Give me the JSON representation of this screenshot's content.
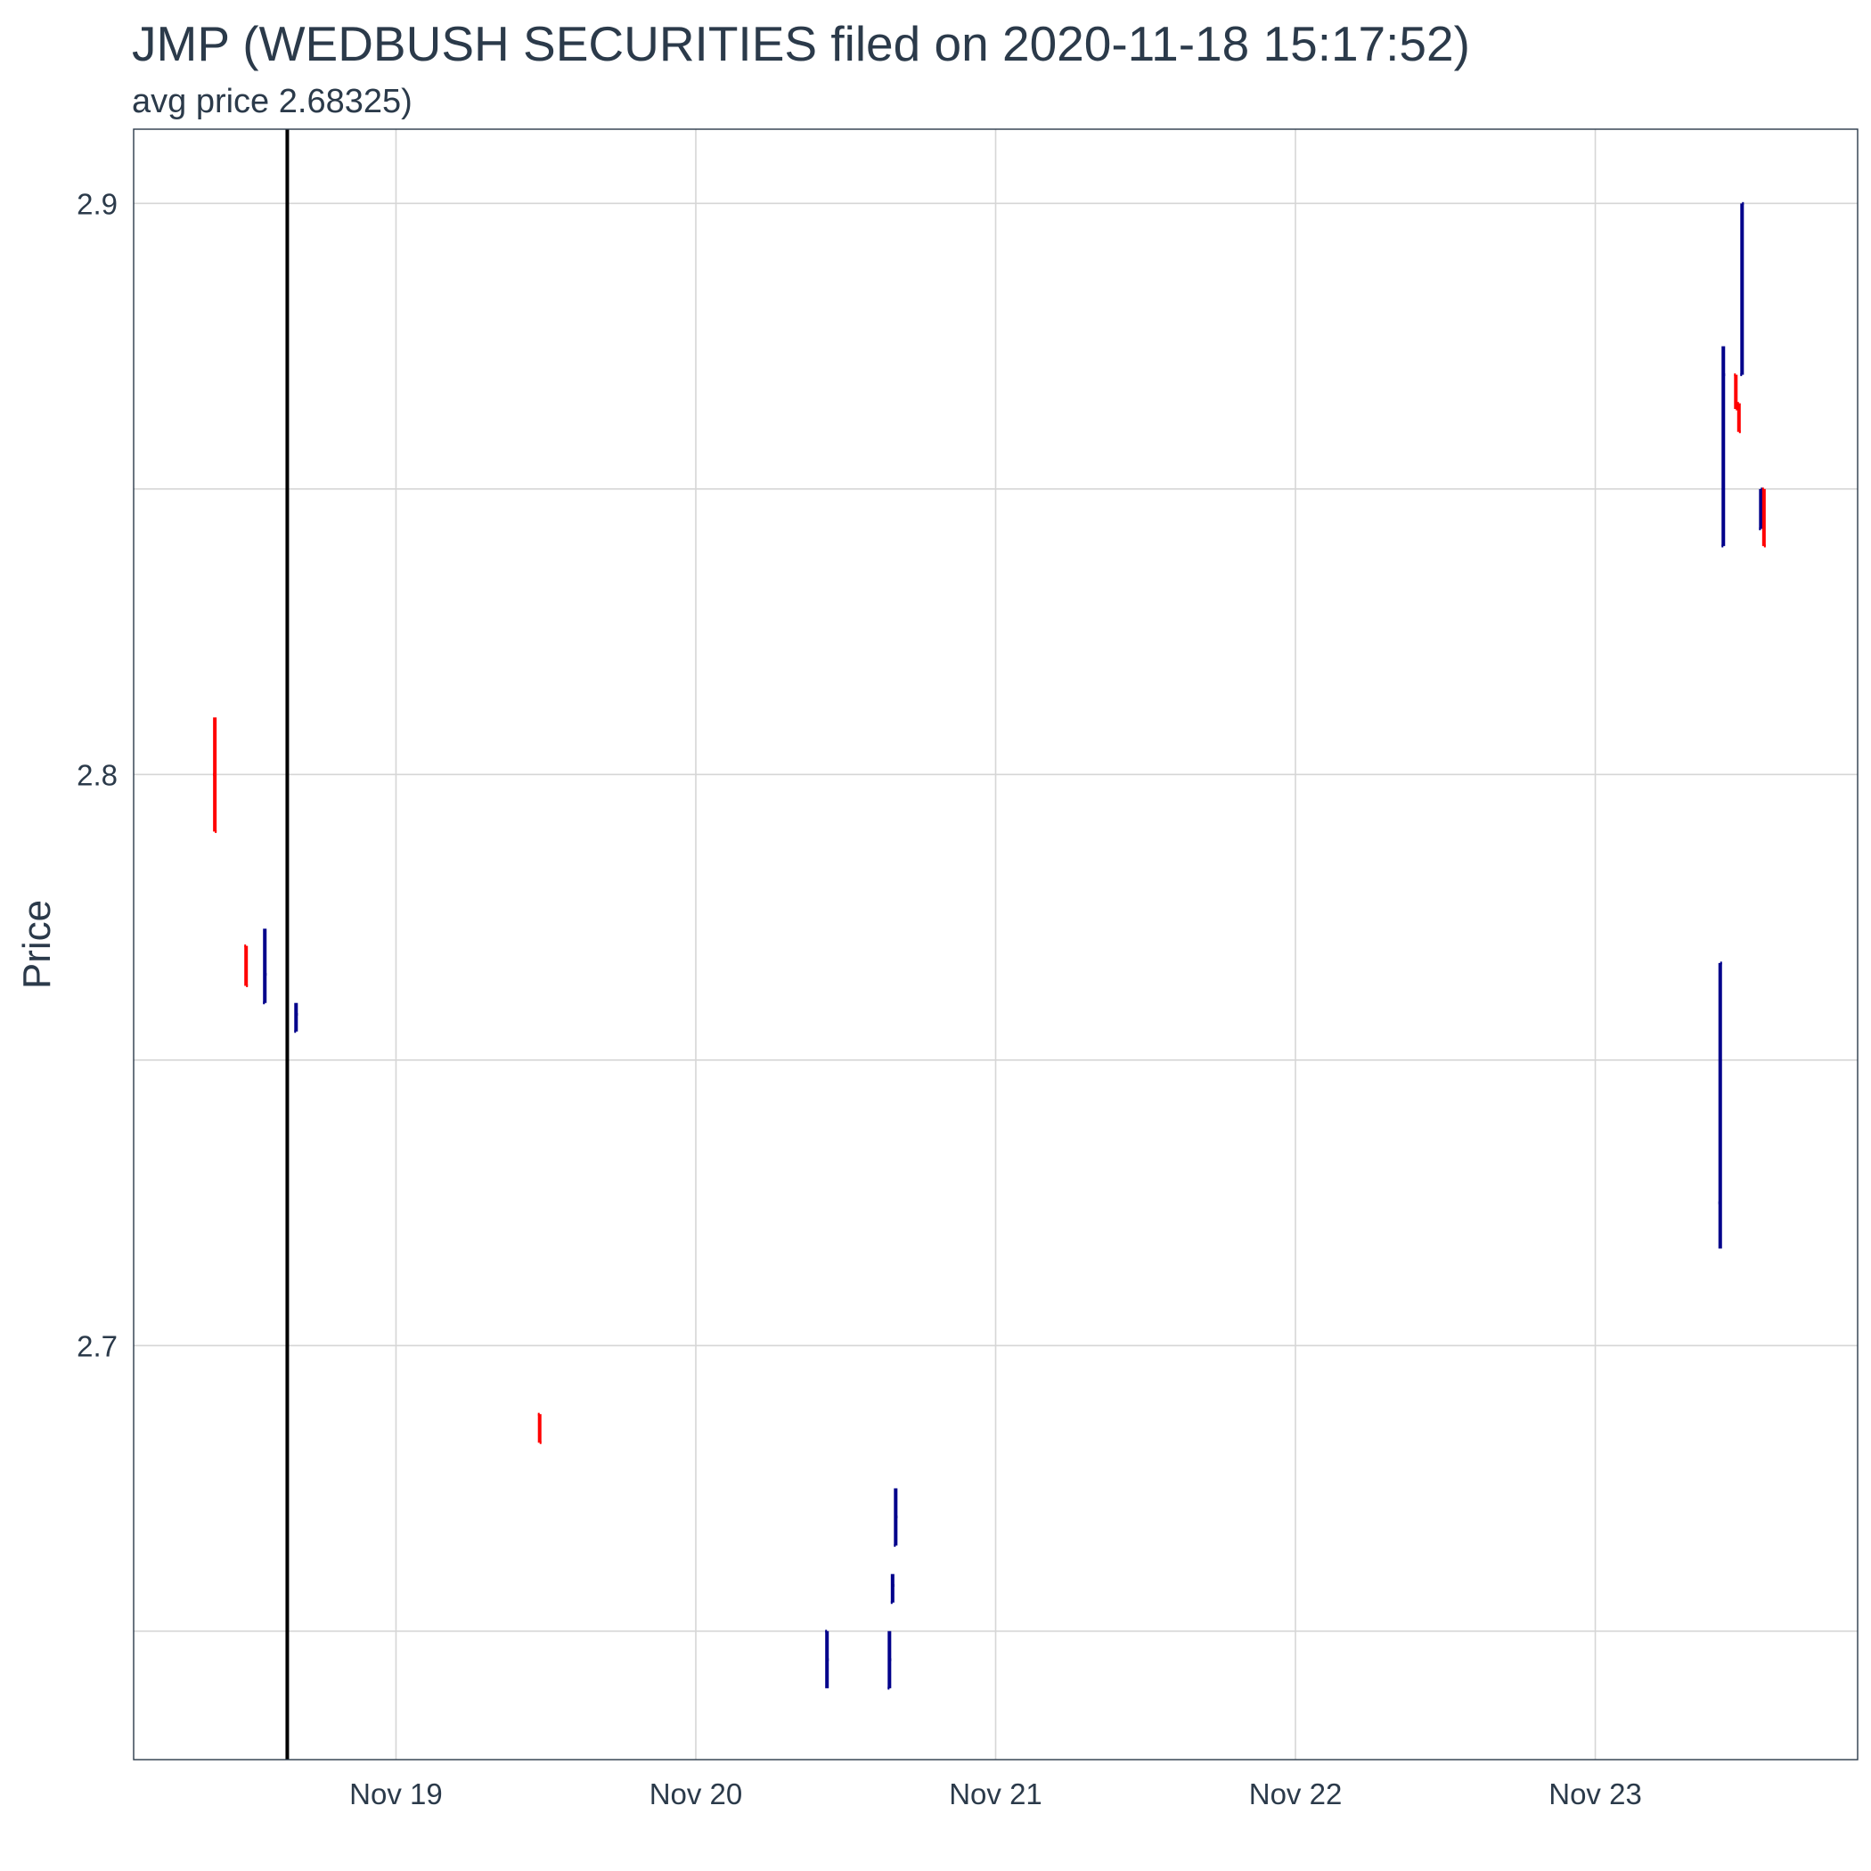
{
  "chart_data": {
    "type": "ohlc",
    "title": "JMP (WEDBUSH SECURITIES filed on 2020-11-18 15:17:52)",
    "subtitle": "avg price 2.68325)",
    "xlabel": "",
    "ylabel": "Price",
    "x_ticks": [
      "Nov 19",
      "Nov 20",
      "Nov 21",
      "Nov 22",
      "Nov 23"
    ],
    "y_ticks": [
      "2.7",
      "2.8",
      "2.9"
    ],
    "ylim": [
      2.6275,
      2.913
    ],
    "xlim": [
      "2020-11-18 03:00",
      "2020-11-23 21:00"
    ],
    "grid": true,
    "filing_marker": "2020-11-18 15:17:52",
    "colors": {
      "up": "#00008b",
      "down": "#ff0000",
      "marker": "#000000",
      "text": "#2b3a4a",
      "grid": "#d6d6d6"
    },
    "bars": [
      {
        "t": "2020-11-18 09:30",
        "open": 2.8,
        "high": 2.81,
        "low": 2.79,
        "close": 2.79,
        "dir": "down"
      },
      {
        "t": "2020-11-18 12:00",
        "open": 2.77,
        "high": 2.77,
        "low": 2.763,
        "close": 2.763,
        "dir": "down"
      },
      {
        "t": "2020-11-18 13:30",
        "open": 2.76,
        "high": 2.773,
        "low": 2.76,
        "close": 2.765,
        "dir": "up"
      },
      {
        "t": "2020-11-18 16:00",
        "open": 2.755,
        "high": 2.76,
        "low": 2.755,
        "close": 2.758,
        "dir": "up"
      },
      {
        "t": "2020-11-19 11:30",
        "open": 2.688,
        "high": 2.688,
        "low": 2.683,
        "close": 2.683,
        "dir": "down"
      },
      {
        "t": "2020-11-20 10:30",
        "open": 2.65,
        "high": 2.65,
        "low": 2.64,
        "close": 2.645,
        "dir": "up"
      },
      {
        "t": "2020-11-20 15:30",
        "open": 2.64,
        "high": 2.65,
        "low": 2.64,
        "close": 2.645,
        "dir": "up"
      },
      {
        "t": "2020-11-20 15:45",
        "open": 2.655,
        "high": 2.66,
        "low": 2.655,
        "close": 2.658,
        "dir": "up"
      },
      {
        "t": "2020-11-20 16:00",
        "open": 2.665,
        "high": 2.675,
        "low": 2.665,
        "close": 2.67,
        "dir": "up"
      },
      {
        "t": "2020-11-23 10:00",
        "open": 2.725,
        "high": 2.767,
        "low": 2.717,
        "close": 2.767,
        "dir": "up"
      },
      {
        "t": "2020-11-23 10:15",
        "open": 2.84,
        "high": 2.875,
        "low": 2.84,
        "close": 2.87,
        "dir": "up"
      },
      {
        "t": "2020-11-23 11:15",
        "open": 2.87,
        "high": 2.87,
        "low": 2.864,
        "close": 2.864,
        "dir": "down"
      },
      {
        "t": "2020-11-23 11:30",
        "open": 2.865,
        "high": 2.865,
        "low": 2.86,
        "close": 2.86,
        "dir": "down"
      },
      {
        "t": "2020-11-23 11:45",
        "open": 2.87,
        "high": 2.9,
        "low": 2.87,
        "close": 2.9,
        "dir": "up"
      },
      {
        "t": "2020-11-23 13:15",
        "open": 2.843,
        "high": 2.85,
        "low": 2.843,
        "close": 2.85,
        "dir": "up"
      },
      {
        "t": "2020-11-23 13:30",
        "open": 2.85,
        "high": 2.85,
        "low": 2.84,
        "close": 2.84,
        "dir": "down"
      }
    ]
  }
}
